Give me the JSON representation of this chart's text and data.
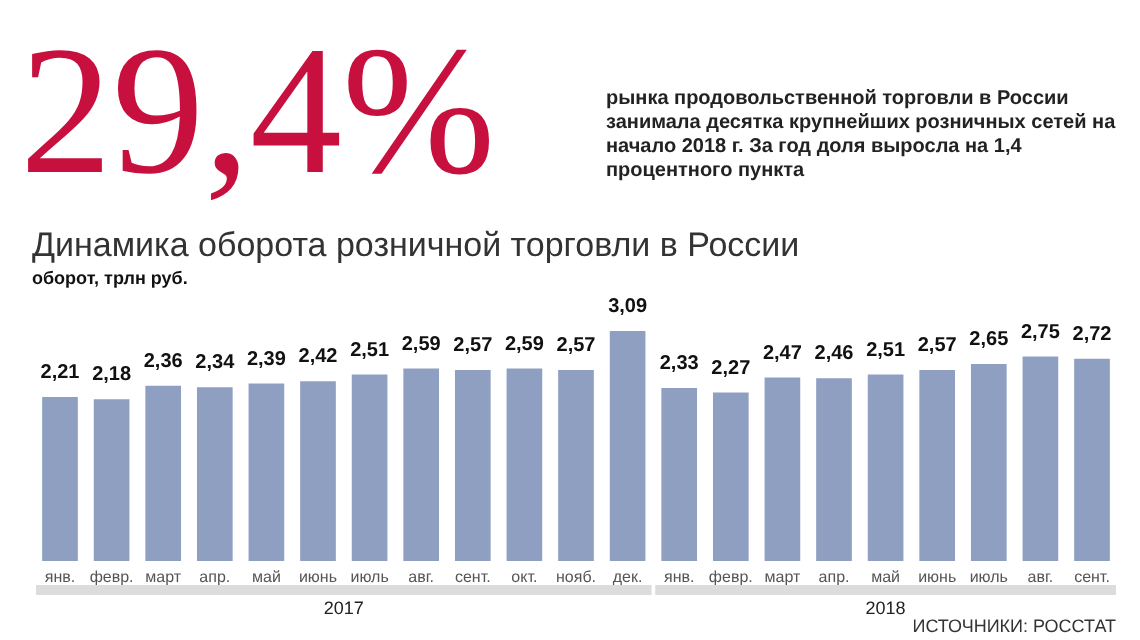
{
  "chart_data": {
    "type": "bar",
    "title": "Динамика оборота розничной торговли в России",
    "ylabel": "оборот, трлн руб.",
    "categories": [
      "янв.",
      "февр.",
      "март",
      "апр.",
      "май",
      "июнь",
      "июль",
      "авг.",
      "сент.",
      "окт.",
      "нояб.",
      "дек.",
      "янв.",
      "февр.",
      "март",
      "апр.",
      "май",
      "июнь",
      "июль",
      "авг.",
      "сент."
    ],
    "values": [
      2.21,
      2.18,
      2.36,
      2.34,
      2.39,
      2.42,
      2.51,
      2.59,
      2.57,
      2.59,
      2.57,
      3.09,
      2.33,
      2.27,
      2.47,
      2.46,
      2.51,
      2.57,
      2.65,
      2.75,
      2.72
    ],
    "value_labels": [
      "2,21",
      "2,18",
      "2,36",
      "2,34",
      "2,39",
      "2,42",
      "2,51",
      "2,59",
      "2,57",
      "2,59",
      "2,57",
      "3,09",
      "2,33",
      "2,27",
      "2,47",
      "2,46",
      "2,51",
      "2,57",
      "2,65",
      "2,75",
      "2,72"
    ],
    "color": "#8e9fc2",
    "annotations": [
      "29,4%",
      "рынка продовольственной торговли в России занимала десятка крупнейших розничных сетей на начало 2018 г. За год доля выросла на 1,4 процентного пункта",
      "2017",
      "2018",
      "ИСТОЧНИКИ: РОССТАТ"
    ]
  }
}
